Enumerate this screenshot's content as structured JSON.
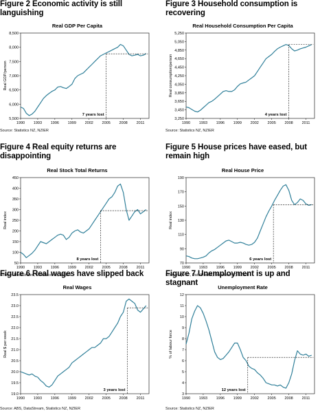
{
  "charts": [
    {
      "figure_title": "Figure 2 Economic activity is still languishing",
      "chart_title": "Real GDP Per Capita",
      "source": "Source: Statistics NZ, NZIER",
      "annotation": "7 years lost",
      "chart_data": {
        "type": "line",
        "title": "Real GDP Per Capita",
        "ylabel": "Real GDP/person",
        "xlabel": "",
        "xlim": [
          1990,
          2012.5
        ],
        "ylim": [
          5500,
          8500
        ],
        "yticks": [
          5500,
          6000,
          6500,
          7000,
          7500,
          8000,
          8500
        ],
        "ytick_labels": [
          "5,500",
          "6,000",
          "6,500",
          "7,000",
          "7,500",
          "8,000",
          "8,500"
        ],
        "xticks": [
          1990,
          1993,
          1996,
          1999,
          2002,
          2005,
          2008,
          2011
        ],
        "xtick_labels": [
          "1990",
          "1993",
          "1996",
          "1999",
          "2002",
          "2005",
          "2008",
          "2011"
        ],
        "series": [
          {
            "x": [
              1990,
              1990.5,
              1991,
              1991.5,
              1992,
              1992.5,
              1993,
              1993.5,
              1994,
              1994.5,
              1995,
              1995.5,
              1996,
              1996.5,
              1997,
              1997.5,
              1998,
              1998.5,
              1999,
              1999.5,
              2000,
              2000.5,
              2001,
              2001.5,
              2002,
              2002.5,
              2003,
              2003.5,
              2004,
              2004.5,
              2005,
              2005.5,
              2006,
              2006.5,
              2007,
              2007.5,
              2008,
              2008.5,
              2009,
              2009.5,
              2010,
              2010.5,
              2011,
              2011.5,
              2012
            ],
            "values": [
              5900,
              5850,
              5680,
              5600,
              5650,
              5750,
              5900,
              6050,
              6200,
              6300,
              6380,
              6450,
              6500,
              6600,
              6620,
              6580,
              6550,
              6620,
              6700,
              6900,
              7000,
              7050,
              7100,
              7200,
              7300,
              7400,
              7500,
              7600,
              7700,
              7750,
              7800,
              7850,
              7900,
              7950,
              8000,
              8100,
              8050,
              7900,
              7750,
              7700,
              7720,
              7750,
              7700,
              7720,
              7780
            ]
          }
        ],
        "reference": {
          "x_start": 2005,
          "x_end": 2012.3,
          "y": 7770,
          "label": "7 years lost"
        }
      }
    },
    {
      "figure_title": "Figure 3 Household consumption is recovering",
      "chart_title": "Real Household Consumption Per Capita",
      "source": "Source: Statistics NZ, NZIER",
      "annotation": "4 years lost",
      "chart_data": {
        "type": "line",
        "title": "Real Household Consumption Per Capita",
        "ylabel": "Real consumption/person",
        "xlabel": "",
        "xlim": [
          1990,
          2012.5
        ],
        "ylim": [
          3250,
          5250
        ],
        "yticks": [
          3250,
          3450,
          3650,
          3850,
          4050,
          4250,
          4450,
          4650,
          4850,
          5050,
          5250
        ],
        "ytick_labels": [
          "3,250",
          "3,450",
          "3,650",
          "3,850",
          "4,050",
          "4,250",
          "4,450",
          "4,650",
          "4,850",
          "5,050",
          "5,250"
        ],
        "xticks": [
          1990,
          1993,
          1996,
          1999,
          2002,
          2005,
          2008,
          2011
        ],
        "xtick_labels": [
          "1990",
          "1993",
          "1996",
          "1999",
          "2002",
          "2005",
          "2008",
          "2011"
        ],
        "series": [
          {
            "x": [
              1990,
              1990.5,
              1991,
              1991.5,
              1992,
              1992.5,
              1993,
              1993.5,
              1994,
              1994.5,
              1995,
              1995.5,
              1996,
              1996.5,
              1997,
              1997.5,
              1998,
              1998.5,
              1999,
              1999.5,
              2000,
              2000.5,
              2001,
              2001.5,
              2002,
              2002.5,
              2003,
              2003.5,
              2004,
              2004.5,
              2005,
              2005.5,
              2006,
              2006.5,
              2007,
              2007.5,
              2008,
              2008.5,
              2009,
              2009.5,
              2010,
              2010.5,
              2011,
              2011.5,
              2012
            ],
            "values": [
              3520,
              3500,
              3460,
              3420,
              3400,
              3440,
              3500,
              3560,
              3620,
              3650,
              3700,
              3760,
              3820,
              3880,
              3900,
              3880,
              3880,
              3920,
              4000,
              4060,
              4080,
              4100,
              4150,
              4200,
              4250,
              4350,
              4450,
              4550,
              4650,
              4700,
              4750,
              4820,
              4880,
              4920,
              4950,
              4980,
              4960,
              4880,
              4830,
              4850,
              4880,
              4900,
              4920,
              4950,
              4980
            ]
          }
        ],
        "reference": {
          "x_start": 2008,
          "x_end": 2012.3,
          "y": 4980,
          "label": "4 years lost"
        }
      }
    },
    {
      "figure_title": "Figure 4 Real equity returns are disappointing",
      "chart_title": "Real Stock Total Returns",
      "source": "Source: DataStream, Statistics NZ, NZIER",
      "annotation": "8 years lost",
      "chart_data": {
        "type": "line",
        "title": "Real Stock Total Returns",
        "ylabel": "Real index",
        "xlabel": "",
        "xlim": [
          1990,
          2012.5
        ],
        "ylim": [
          50,
          450
        ],
        "yticks": [
          50,
          100,
          150,
          200,
          250,
          300,
          350,
          400,
          450
        ],
        "ytick_labels": [
          "50",
          "100",
          "150",
          "200",
          "250",
          "300",
          "350",
          "400",
          "450"
        ],
        "xticks": [
          1990,
          1993,
          1996,
          1999,
          2002,
          2005,
          2008,
          2011
        ],
        "xtick_labels": [
          "1990",
          "1993",
          "1996",
          "1999",
          "2002",
          "2005",
          "2008",
          "2011"
        ],
        "series": [
          {
            "x": [
              1990,
              1990.5,
              1991,
              1991.5,
              1992,
              1992.5,
              1993,
              1993.5,
              1994,
              1994.5,
              1995,
              1995.5,
              1996,
              1996.5,
              1997,
              1997.5,
              1998,
              1998.5,
              1999,
              1999.5,
              2000,
              2000.5,
              2001,
              2001.5,
              2002,
              2002.5,
              2003,
              2003.5,
              2004,
              2004.5,
              2005,
              2005.5,
              2006,
              2006.5,
              2007,
              2007.5,
              2008,
              2008.5,
              2009,
              2009.5,
              2010,
              2010.5,
              2011,
              2011.5,
              2012
            ],
            "values": [
              100,
              90,
              75,
              85,
              95,
              110,
              130,
              150,
              145,
              140,
              150,
              160,
              170,
              180,
              185,
              180,
              160,
              170,
              190,
              200,
              205,
              195,
              190,
              200,
              210,
              230,
              250,
              270,
              290,
              310,
              330,
              350,
              360,
              380,
              410,
              420,
              380,
              300,
              250,
              270,
              290,
              300,
              280,
              290,
              300
            ]
          }
        ],
        "reference": {
          "x_start": 2004,
          "x_end": 2012.3,
          "y": 295,
          "label": "8 years lost"
        }
      }
    },
    {
      "figure_title": "Figure 5 House prices have eased, but remain high",
      "chart_title": "Real House Price",
      "source": "Source: QVNZ, DataStream, Statistics NZ, NZIER",
      "annotation": "6 years lost",
      "chart_data": {
        "type": "line",
        "title": "Real House Price",
        "ylabel": "Real index",
        "xlabel": "",
        "xlim": [
          1990,
          2012.5
        ],
        "ylim": [
          70,
          190
        ],
        "yticks": [
          70,
          90,
          110,
          130,
          150,
          170,
          190
        ],
        "ytick_labels": [
          "70",
          "90",
          "110",
          "130",
          "150",
          "170",
          "190"
        ],
        "xticks": [
          1990,
          1993,
          1996,
          1999,
          2002,
          2005,
          2008,
          2011
        ],
        "xtick_labels": [
          "1990",
          "1993",
          "1996",
          "1999",
          "2002",
          "2005",
          "2008",
          "2011"
        ],
        "series": [
          {
            "x": [
              1990,
              1990.5,
              1991,
              1991.5,
              1992,
              1992.5,
              1993,
              1993.5,
              1994,
              1994.5,
              1995,
              1995.5,
              1996,
              1996.5,
              1997,
              1997.5,
              1998,
              1998.5,
              1999,
              1999.5,
              2000,
              2000.5,
              2001,
              2001.5,
              2002,
              2002.5,
              2003,
              2003.5,
              2004,
              2004.5,
              2005,
              2005.5,
              2006,
              2006.5,
              2007,
              2007.5,
              2008,
              2008.5,
              2009,
              2009.5,
              2010,
              2010.5,
              2011,
              2011.5,
              2012
            ],
            "values": [
              80,
              79,
              77,
              76,
              76,
              77,
              78,
              80,
              84,
              87,
              89,
              92,
              95,
              98,
              101,
              102,
              100,
              98,
              98,
              99,
              98,
              96,
              95,
              96,
              99,
              105,
              115,
              125,
              135,
              143,
              150,
              158,
              165,
              172,
              178,
              180,
              172,
              158,
              152,
              155,
              160,
              158,
              153,
              151,
              152
            ]
          }
        ],
        "reference": {
          "x_start": 2005.3,
          "x_end": 2012.3,
          "y": 152,
          "label": "6 years lost"
        }
      }
    },
    {
      "figure_title": "Figure 6 Real wages have slipped back",
      "chart_title": "Real Wages",
      "source": "Source: ABS, DataStream, Statistics NZ, NZIER",
      "annotation": "3 years lost",
      "chart_data": {
        "type": "line",
        "title": "Real Wages",
        "ylabel": "Real $ per week",
        "xlabel": "",
        "xlim": [
          1990,
          2012.5
        ],
        "ylim": [
          19.0,
          23.5
        ],
        "yticks": [
          19.0,
          19.5,
          20.0,
          20.5,
          21.0,
          21.5,
          22.0,
          22.5,
          23.0,
          23.5
        ],
        "ytick_labels": [
          "19.0",
          "19.5",
          "20.0",
          "20.5",
          "21.0",
          "21.5",
          "22.0",
          "22.5",
          "23.0",
          "23.5"
        ],
        "xticks": [
          1990,
          1993,
          1996,
          1999,
          2002,
          2005,
          2008,
          2011
        ],
        "xtick_labels": [
          "1990",
          "1993",
          "1996",
          "1999",
          "2002",
          "2005",
          "2008",
          "2011"
        ],
        "series": [
          {
            "x": [
              1990,
              1990.5,
              1991,
              1991.5,
              1992,
              1992.5,
              1993,
              1993.5,
              1994,
              1994.5,
              1995,
              1995.5,
              1996,
              1996.5,
              1997,
              1997.5,
              1998,
              1998.5,
              1999,
              1999.5,
              2000,
              2000.5,
              2001,
              2001.5,
              2002,
              2002.5,
              2003,
              2003.5,
              2004,
              2004.5,
              2005,
              2005.5,
              2006,
              2006.5,
              2007,
              2007.5,
              2008,
              2008.5,
              2009,
              2009.5,
              2010,
              2010.5,
              2011,
              2011.5,
              2012
            ],
            "values": [
              20.0,
              19.95,
              19.9,
              19.85,
              19.9,
              19.8,
              19.75,
              19.6,
              19.5,
              19.35,
              19.3,
              19.4,
              19.6,
              19.8,
              19.9,
              20.0,
              20.1,
              20.2,
              20.4,
              20.5,
              20.6,
              20.7,
              20.8,
              20.9,
              21.0,
              21.1,
              21.1,
              21.2,
              21.3,
              21.5,
              21.5,
              21.6,
              21.8,
              22.0,
              22.2,
              22.5,
              22.7,
              23.2,
              23.3,
              23.2,
              23.1,
              22.8,
              22.7,
              22.85,
              23.0
            ]
          }
        ],
        "reference": {
          "x_start": 2008.7,
          "x_end": 2012.3,
          "y": 22.9,
          "label": "3 years lost"
        }
      }
    },
    {
      "figure_title": "Figure 7 Unemployment is up and stagnant",
      "chart_title": "Unemployment Rate",
      "source": "Source: Statistics NZ, NZIER",
      "annotation": "12 years lost",
      "chart_data": {
        "type": "line",
        "title": "Unemployment Rate",
        "ylabel": "% of labour force",
        "xlabel": "",
        "xlim": [
          1990,
          2012.5
        ],
        "ylim": [
          3,
          12
        ],
        "yticks": [
          3,
          4,
          5,
          6,
          7,
          8,
          9,
          10,
          11,
          12
        ],
        "ytick_labels": [
          "3",
          "4",
          "5",
          "6",
          "7",
          "8",
          "9",
          "10",
          "11",
          "12"
        ],
        "xticks": [
          1990,
          1993,
          1996,
          1999,
          2002,
          2005,
          2008,
          2011
        ],
        "xtick_labels": [
          "1990",
          "1993",
          "1996",
          "1999",
          "2002",
          "2005",
          "2008",
          "2011"
        ],
        "series": [
          {
            "x": [
              1990,
              1990.5,
              1991,
              1991.5,
              1992,
              1992.5,
              1993,
              1993.5,
              1994,
              1994.5,
              1995,
              1995.5,
              1996,
              1996.5,
              1997,
              1997.5,
              1998,
              1998.5,
              1999,
              1999.5,
              2000,
              2000.5,
              2001,
              2001.5,
              2002,
              2002.5,
              2003,
              2003.5,
              2004,
              2004.5,
              2005,
              2005.5,
              2006,
              2006.5,
              2007,
              2007.5,
              2008,
              2008.5,
              2009,
              2009.5,
              2010,
              2010.5,
              2011,
              2011.5,
              2012
            ],
            "values": [
              7.5,
              8.5,
              9.8,
              10.5,
              11.0,
              10.8,
              10.3,
              9.6,
              8.8,
              7.8,
              6.8,
              6.3,
              6.1,
              6.2,
              6.5,
              6.8,
              7.2,
              7.6,
              7.6,
              7.0,
              6.3,
              6.0,
              5.5,
              5.3,
              5.2,
              4.9,
              4.7,
              4.4,
              4.0,
              3.9,
              3.8,
              3.8,
              3.7,
              3.8,
              3.6,
              3.5,
              4.0,
              4.8,
              6.0,
              6.9,
              6.6,
              6.5,
              6.6,
              6.4,
              6.5
            ]
          }
        ],
        "reference": {
          "x_start": 2000.8,
          "x_end": 2012.3,
          "y": 6.3,
          "label": "12 years lost"
        }
      }
    }
  ]
}
